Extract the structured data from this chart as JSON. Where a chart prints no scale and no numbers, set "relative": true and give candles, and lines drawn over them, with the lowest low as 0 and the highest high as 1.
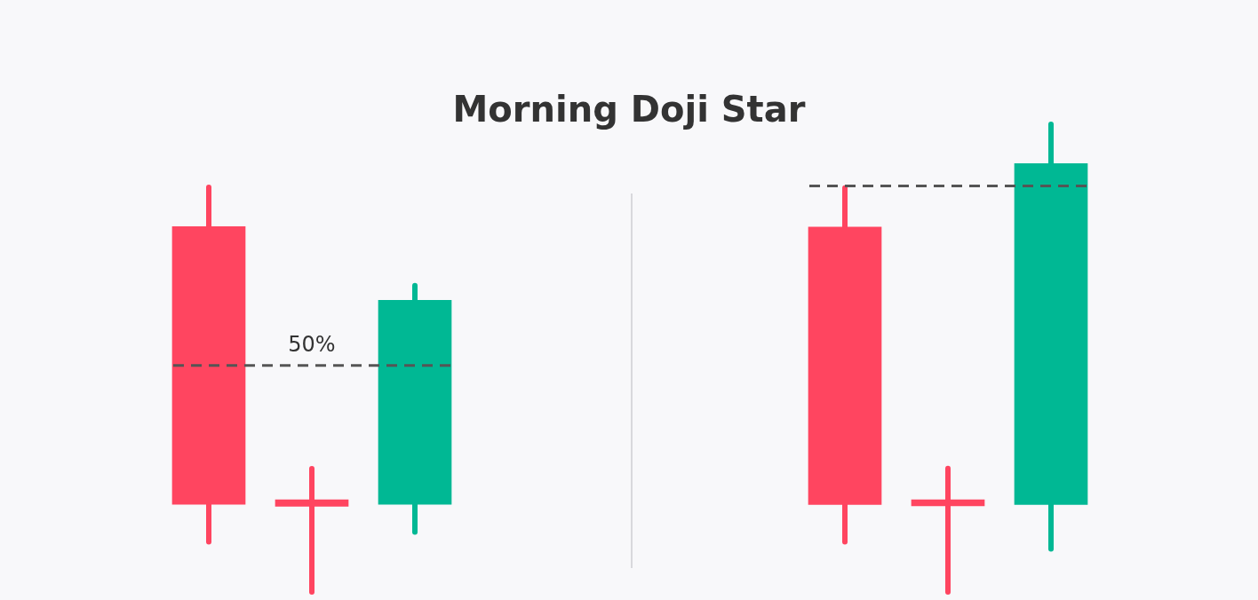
{
  "chart_data": [
    {
      "type": "candlestick",
      "title": "Morning Doji Star",
      "relative": true,
      "categories": [
        null,
        null,
        null
      ],
      "ohlc": [
        [
          0.903,
          1.0,
          0.124,
          0.217
        ],
        [
          0.228,
          0.305,
          0.0,
          0.212
        ],
        [
          0.217,
          0.757,
          0.148,
          0.721
        ]
      ],
      "colors": [
        "#ff4560",
        "#ff4560",
        "#00b894"
      ],
      "annotations": [
        "50%"
      ],
      "ref_lines": [
        {
          "axis": "y",
          "value": 0.56,
          "label": null,
          "color": "#555555",
          "line_style": "dashed"
        }
      ]
    },
    {
      "type": "candlestick",
      "relative": true,
      "categories": [
        null,
        null,
        null
      ],
      "ohlc": [
        [
          0.78,
          0.864,
          0.107,
          0.187
        ],
        [
          0.197,
          0.264,
          0.0,
          0.184
        ],
        [
          0.187,
          1.0,
          0.092,
          0.916
        ]
      ],
      "colors": [
        "#ff4560",
        "#ff4560",
        "#00b894"
      ],
      "ref_lines": [
        {
          "axis": "y",
          "value": 0.868,
          "label": null,
          "color": "#555555",
          "line_style": "dashed"
        }
      ]
    }
  ]
}
